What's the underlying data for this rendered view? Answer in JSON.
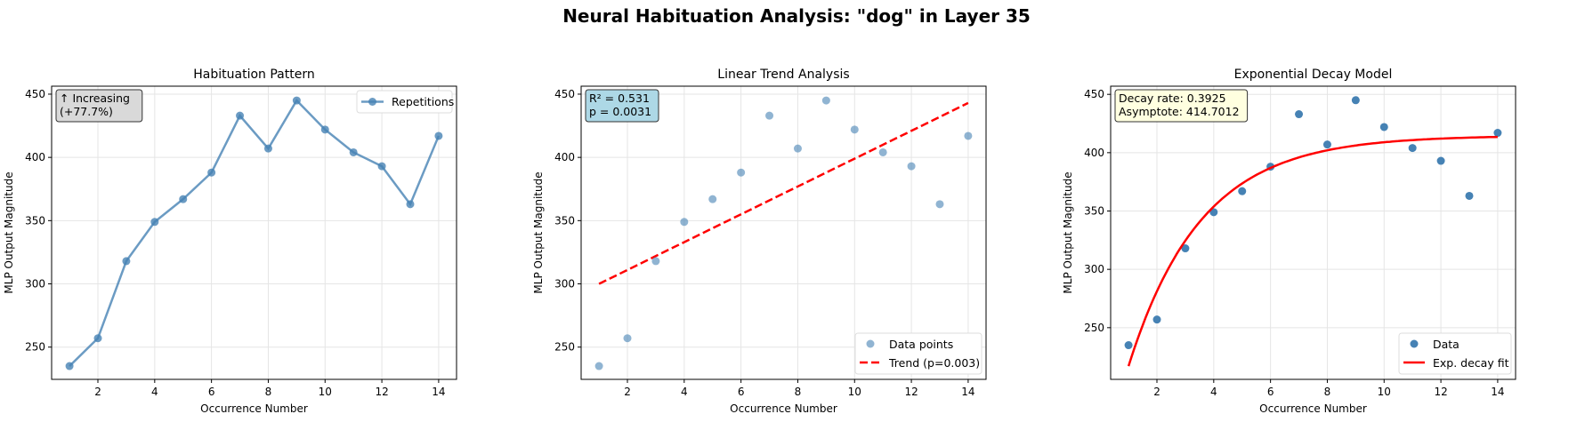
{
  "suptitle": "Neural Habituation Analysis: \"dog\" in Layer 35",
  "chart_data": [
    {
      "type": "line",
      "title": "Habituation Pattern",
      "xlabel": "Occurrence Number",
      "ylabel": "MLP Output Magnitude",
      "x": [
        1,
        2,
        3,
        4,
        5,
        6,
        7,
        8,
        9,
        10,
        11,
        12,
        13,
        14
      ],
      "series": [
        {
          "name": "Repetitions",
          "values": [
            235,
            257,
            318,
            349,
            367,
            388,
            433,
            407,
            445,
            422,
            404,
            393,
            363,
            417
          ],
          "color": "#4682b4"
        }
      ],
      "xlim": [
        0.37,
        14.63
      ],
      "ylim": [
        224.5,
        456.3
      ],
      "xticks": [
        2,
        4,
        6,
        8,
        10,
        12,
        14
      ],
      "yticks": [
        250,
        300,
        350,
        400,
        450
      ],
      "grid": true,
      "legend": "top-right",
      "annotation": {
        "lines": [
          "↑ Increasing",
          "(+77.7%)"
        ],
        "bg": "#d9d9d9"
      }
    },
    {
      "type": "scatter",
      "title": "Linear Trend Analysis",
      "xlabel": "Occurrence Number",
      "ylabel": "MLP Output Magnitude",
      "x": [
        1,
        2,
        3,
        4,
        5,
        6,
        7,
        8,
        9,
        10,
        11,
        12,
        13,
        14
      ],
      "series": [
        {
          "name": "Data points",
          "values": [
            235,
            257,
            318,
            349,
            367,
            388,
            433,
            407,
            445,
            422,
            404,
            393,
            363,
            417
          ],
          "color": "#4682b4"
        },
        {
          "name": "Trend (p=0.003)",
          "kind": "trend",
          "slope": 11.0,
          "intercept": 289.0,
          "color": "#ff0000"
        }
      ],
      "xlim": [
        0.37,
        14.63
      ],
      "ylim": [
        224.5,
        456.3
      ],
      "xticks": [
        2,
        4,
        6,
        8,
        10,
        12,
        14
      ],
      "yticks": [
        250,
        300,
        350,
        400,
        450
      ],
      "grid": true,
      "legend": "bottom-right",
      "annotation": {
        "lines": [
          "R² = 0.531",
          "p = 0.0031"
        ],
        "bg": "#add8e6"
      }
    },
    {
      "type": "scatter",
      "title": "Exponential Decay Model",
      "xlabel": "Occurrence Number",
      "ylabel": "MLP Output Magnitude",
      "x": [
        1,
        2,
        3,
        4,
        5,
        6,
        7,
        8,
        9,
        10,
        11,
        12,
        13,
        14
      ],
      "series": [
        {
          "name": "Data",
          "values": [
            235,
            257,
            318,
            349,
            367,
            388,
            433,
            407,
            445,
            422,
            404,
            393,
            363,
            417
          ],
          "color": "#4682b4"
        },
        {
          "name": "Exp. decay fit",
          "kind": "expfit",
          "asymptote": 414.7012,
          "amplitude": 292.7,
          "rate": 0.3925,
          "color": "#ff0000"
        }
      ],
      "xlim": [
        0.37,
        14.63
      ],
      "ylim": [
        205.7,
        457.0
      ],
      "xticks": [
        2,
        4,
        6,
        8,
        10,
        12,
        14
      ],
      "yticks": [
        250,
        300,
        350,
        400,
        450
      ],
      "grid": true,
      "legend": "bottom-right",
      "annotation": {
        "lines": [
          "Decay rate: 0.3925",
          "Asymptote: 414.7012"
        ],
        "bg": "#ffffe0"
      }
    }
  ]
}
